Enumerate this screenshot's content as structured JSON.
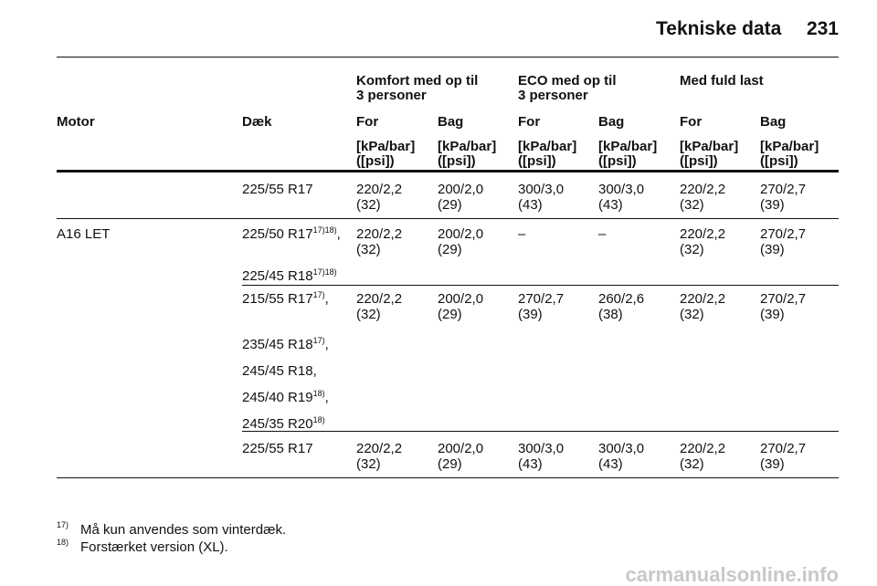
{
  "header": {
    "title": "Tekniske data",
    "page": "231"
  },
  "table": {
    "group_headers": [
      [
        "Komfort med op til",
        "3 personer"
      ],
      [
        "ECO med op til",
        "3 personer"
      ],
      [
        "Med fuld last"
      ]
    ],
    "columns": [
      "Motor",
      "Dæk",
      "For",
      "Bag",
      "For",
      "Bag",
      "For",
      "Bag"
    ],
    "units": [
      [
        "[kPa/bar]",
        "([psi])"
      ],
      [
        "[kPa/bar]",
        "([psi])"
      ],
      [
        "[kPa/bar]",
        "([psi])"
      ],
      [
        "[kPa/bar]",
        "([psi])"
      ],
      [
        "[kPa/bar]",
        "([psi])"
      ],
      [
        "[kPa/bar]",
        "([psi])"
      ]
    ],
    "rows": [
      {
        "tires": [
          {
            "text": "225/55 R17"
          }
        ],
        "values": [
          [
            "220/2,2",
            "(32)"
          ],
          [
            "200/2,0",
            "(29)"
          ],
          [
            "300/3,0",
            "(43)"
          ],
          [
            "300/3,0",
            "(43)"
          ],
          [
            "220/2,2",
            "(32)"
          ],
          [
            "270/2,7",
            "(39)"
          ]
        ]
      },
      {
        "motor": "A16 LET",
        "tires": [
          {
            "text": "225/50 R17",
            "sup": "17)18)",
            "suffix": ","
          },
          {
            "text": "225/45 R18",
            "sup": "17)18)"
          }
        ],
        "values": [
          [
            "220/2,2",
            "(32)"
          ],
          [
            "200/2,0",
            "(29)"
          ],
          [
            "–"
          ],
          [
            "–"
          ],
          [
            "220/2,2",
            "(32)"
          ],
          [
            "270/2,7",
            "(39)"
          ]
        ]
      },
      {
        "tires": [
          {
            "text": "215/55 R17",
            "sup": "17)",
            "suffix": ","
          },
          {
            "text": "235/45 R18",
            "sup": "17)",
            "suffix": ","
          },
          {
            "text": "245/45 R18,"
          },
          {
            "text": "245/40 R19",
            "sup": "18)",
            "suffix": ","
          },
          {
            "text": "245/35 R20",
            "sup": "18)"
          }
        ],
        "values": [
          [
            "220/2,2",
            "(32)"
          ],
          [
            "200/2,0",
            "(29)"
          ],
          [
            "270/2,7",
            "(39)"
          ],
          [
            "260/2,6",
            "(38)"
          ],
          [
            "220/2,2",
            "(32)"
          ],
          [
            "270/2,7",
            "(39)"
          ]
        ]
      },
      {
        "tires": [
          {
            "text": "225/55 R17"
          }
        ],
        "values": [
          [
            "220/2,2",
            "(32)"
          ],
          [
            "200/2,0",
            "(29)"
          ],
          [
            "300/3,0",
            "(43)"
          ],
          [
            "300/3,0",
            "(43)"
          ],
          [
            "220/2,2",
            "(32)"
          ],
          [
            "270/2,7",
            "(39)"
          ]
        ]
      }
    ]
  },
  "footnotes": [
    {
      "mark": "17)",
      "text": "Må kun anvendes som vinterdæk."
    },
    {
      "mark": "18)",
      "text": "Forstærket version (XL)."
    }
  ],
  "watermark": "carmanualsonline.info"
}
